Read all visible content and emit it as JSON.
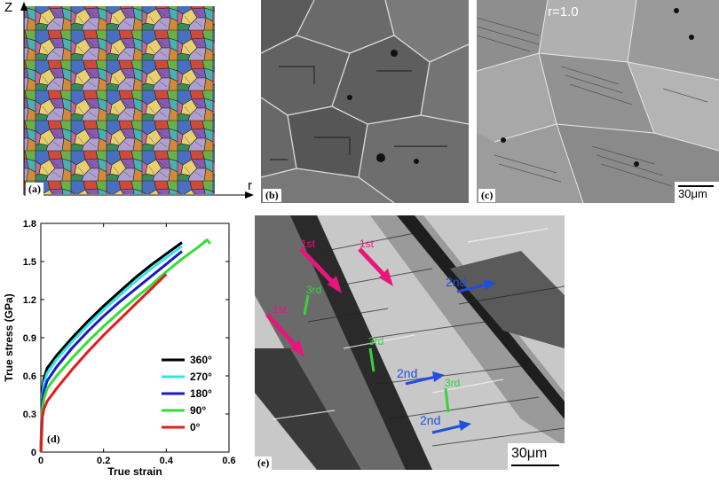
{
  "panels": {
    "a": {
      "label": "(a)",
      "axis_z": "Z",
      "axis_r": "r"
    },
    "b": {
      "label": "(b)"
    },
    "c": {
      "label": "(c)",
      "annotation": "r=1.0",
      "scalebar": "30μm"
    },
    "d": {
      "label": "(d)"
    },
    "e": {
      "label": "(e)",
      "scalebar": "30μm",
      "arrows": [
        {
          "text": "1st",
          "color": "#e8157a"
        },
        {
          "text": "1st",
          "color": "#e8157a"
        },
        {
          "text": "1st",
          "color": "#e8157a"
        },
        {
          "text": "2nd",
          "color": "#1f4fe0"
        },
        {
          "text": "2nd",
          "color": "#1f4fe0"
        },
        {
          "text": "2nd",
          "color": "#1f4fe0"
        },
        {
          "text": "3rd",
          "color": "#3bd13b"
        },
        {
          "text": "3rd",
          "color": "#3bd13b"
        },
        {
          "text": "3rd",
          "color": "#3bd13b"
        }
      ]
    }
  },
  "chart_data": {
    "type": "line",
    "title": "",
    "xlabel": "True strain",
    "ylabel": "True stress (GPa)",
    "xlim": [
      0,
      0.6
    ],
    "ylim": [
      0,
      1.8
    ],
    "xticks": [
      "0",
      "0.2",
      "0.4",
      "0.6"
    ],
    "yticks": [
      "0",
      "0.3",
      "0.6",
      "0.9",
      "1.2",
      "1.5",
      "1.8"
    ],
    "legend_position": "lower-right",
    "series": [
      {
        "name": "360°",
        "color": "#000000",
        "x": [
          0,
          0.005,
          0.01,
          0.02,
          0.05,
          0.1,
          0.15,
          0.2,
          0.25,
          0.3,
          0.35,
          0.4,
          0.45
        ],
        "y": [
          0,
          0.5,
          0.58,
          0.66,
          0.76,
          0.9,
          1.03,
          1.15,
          1.26,
          1.37,
          1.47,
          1.56,
          1.65
        ]
      },
      {
        "name": "270°",
        "color": "#33e6e6",
        "x": [
          0,
          0.005,
          0.01,
          0.02,
          0.05,
          0.1,
          0.15,
          0.2,
          0.25,
          0.3,
          0.35,
          0.4,
          0.45
        ],
        "y": [
          0,
          0.45,
          0.54,
          0.62,
          0.73,
          0.87,
          1.0,
          1.12,
          1.23,
          1.34,
          1.44,
          1.53,
          1.62
        ]
      },
      {
        "name": "180°",
        "color": "#1a1acc",
        "x": [
          0,
          0.005,
          0.01,
          0.02,
          0.05,
          0.1,
          0.15,
          0.2,
          0.25,
          0.3,
          0.35,
          0.4,
          0.45
        ],
        "y": [
          0,
          0.4,
          0.48,
          0.56,
          0.67,
          0.82,
          0.95,
          1.07,
          1.18,
          1.28,
          1.38,
          1.48,
          1.58
        ]
      },
      {
        "name": "90°",
        "color": "#33dd33",
        "x": [
          0,
          0.005,
          0.01,
          0.02,
          0.05,
          0.1,
          0.15,
          0.2,
          0.25,
          0.3,
          0.35,
          0.4,
          0.45,
          0.5,
          0.53,
          0.54
        ],
        "y": [
          0,
          0.34,
          0.42,
          0.5,
          0.6,
          0.74,
          0.87,
          0.99,
          1.1,
          1.21,
          1.31,
          1.42,
          1.52,
          1.61,
          1.67,
          1.64
        ]
      },
      {
        "name": "0°",
        "color": "#e61a1a",
        "x": [
          0,
          0.005,
          0.01,
          0.02,
          0.05,
          0.1,
          0.15,
          0.2,
          0.25,
          0.3,
          0.35,
          0.4
        ],
        "y": [
          0,
          0.28,
          0.34,
          0.4,
          0.5,
          0.65,
          0.79,
          0.92,
          1.04,
          1.16,
          1.28,
          1.4
        ]
      }
    ]
  }
}
